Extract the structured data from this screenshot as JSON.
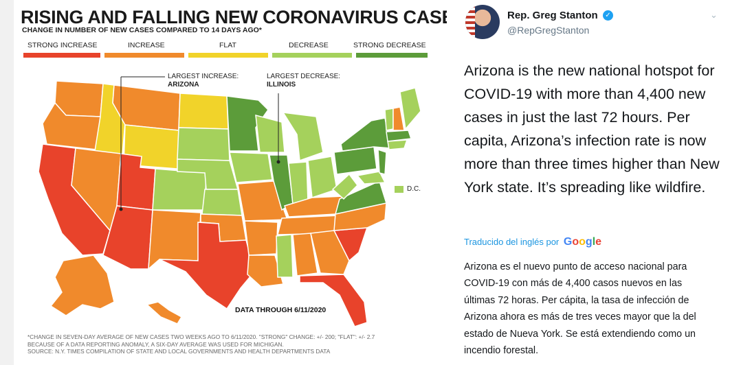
{
  "map": {
    "title": "RISING AND FALLING NEW CORONAVIRUS CASES",
    "subtitle": "CHANGE IN NUMBER OF NEW CASES COMPARED TO 14 DAYS AGO*",
    "legend": [
      {
        "label": "STRONG INCREASE",
        "color": "#e8432b"
      },
      {
        "label": "INCREASE",
        "color": "#f08a2c"
      },
      {
        "label": "FLAT",
        "color": "#f1d32a"
      },
      {
        "label": "DECREASE",
        "color": "#a5d15c"
      },
      {
        "label": "STRONG DECREASE",
        "color": "#5c9c3a"
      }
    ],
    "largest_increase_label": "LARGEST INCREASE:",
    "largest_increase_state": "ARIZONA",
    "largest_decrease_label": "LARGEST DECREASE:",
    "largest_decrease_state": "ILLINOIS",
    "dc_label": "D.C.",
    "data_through": "DATA THROUGH 6/11/2020",
    "footnote_1": "*CHANGE IN SEVEN-DAY AVERAGE OF NEW CASES TWO WEEKS AGO TO 6/11/2020. \"STRONG\" CHANGE: +/- 200; \"FLAT\": +/- 2.7",
    "footnote_2": "BECAUSE OF A DATA REPORTING ANOMALY, A SIX-DAY AVERAGE WAS USED FOR MICHIGAN.",
    "footnote_3": "SOURCE: N.Y. TIMES COMPILATION OF STATE AND LOCAL GOVERNMENTS AND HEALTH DEPARTMENTS DATA"
  },
  "tweet": {
    "author_name": "Rep. Greg Stanton",
    "author_handle": "@RepGregStanton",
    "text": "Arizona is the new national hotspot for COVID-19 with more than 4,400 new cases in just the last 72 hours. Per capita, Arizona’s infection rate is now more than three times higher than New York state. It’s spreading like wildfire.",
    "translated_by": "Traducido del inglés por",
    "translator": "Google",
    "translated_text": "Arizona es el nuevo punto de acceso nacional para COVID-19 con más de 4,400 casos nuevos en las últimas 72 horas. Per cápita, la tasa de infección de Arizona ahora es más de tres veces mayor que la del estado de Nueva York. Se está extendiendo como un incendio forestal."
  },
  "icons": {
    "verified": "verified-badge-icon",
    "menu": "chevron-down-icon"
  }
}
